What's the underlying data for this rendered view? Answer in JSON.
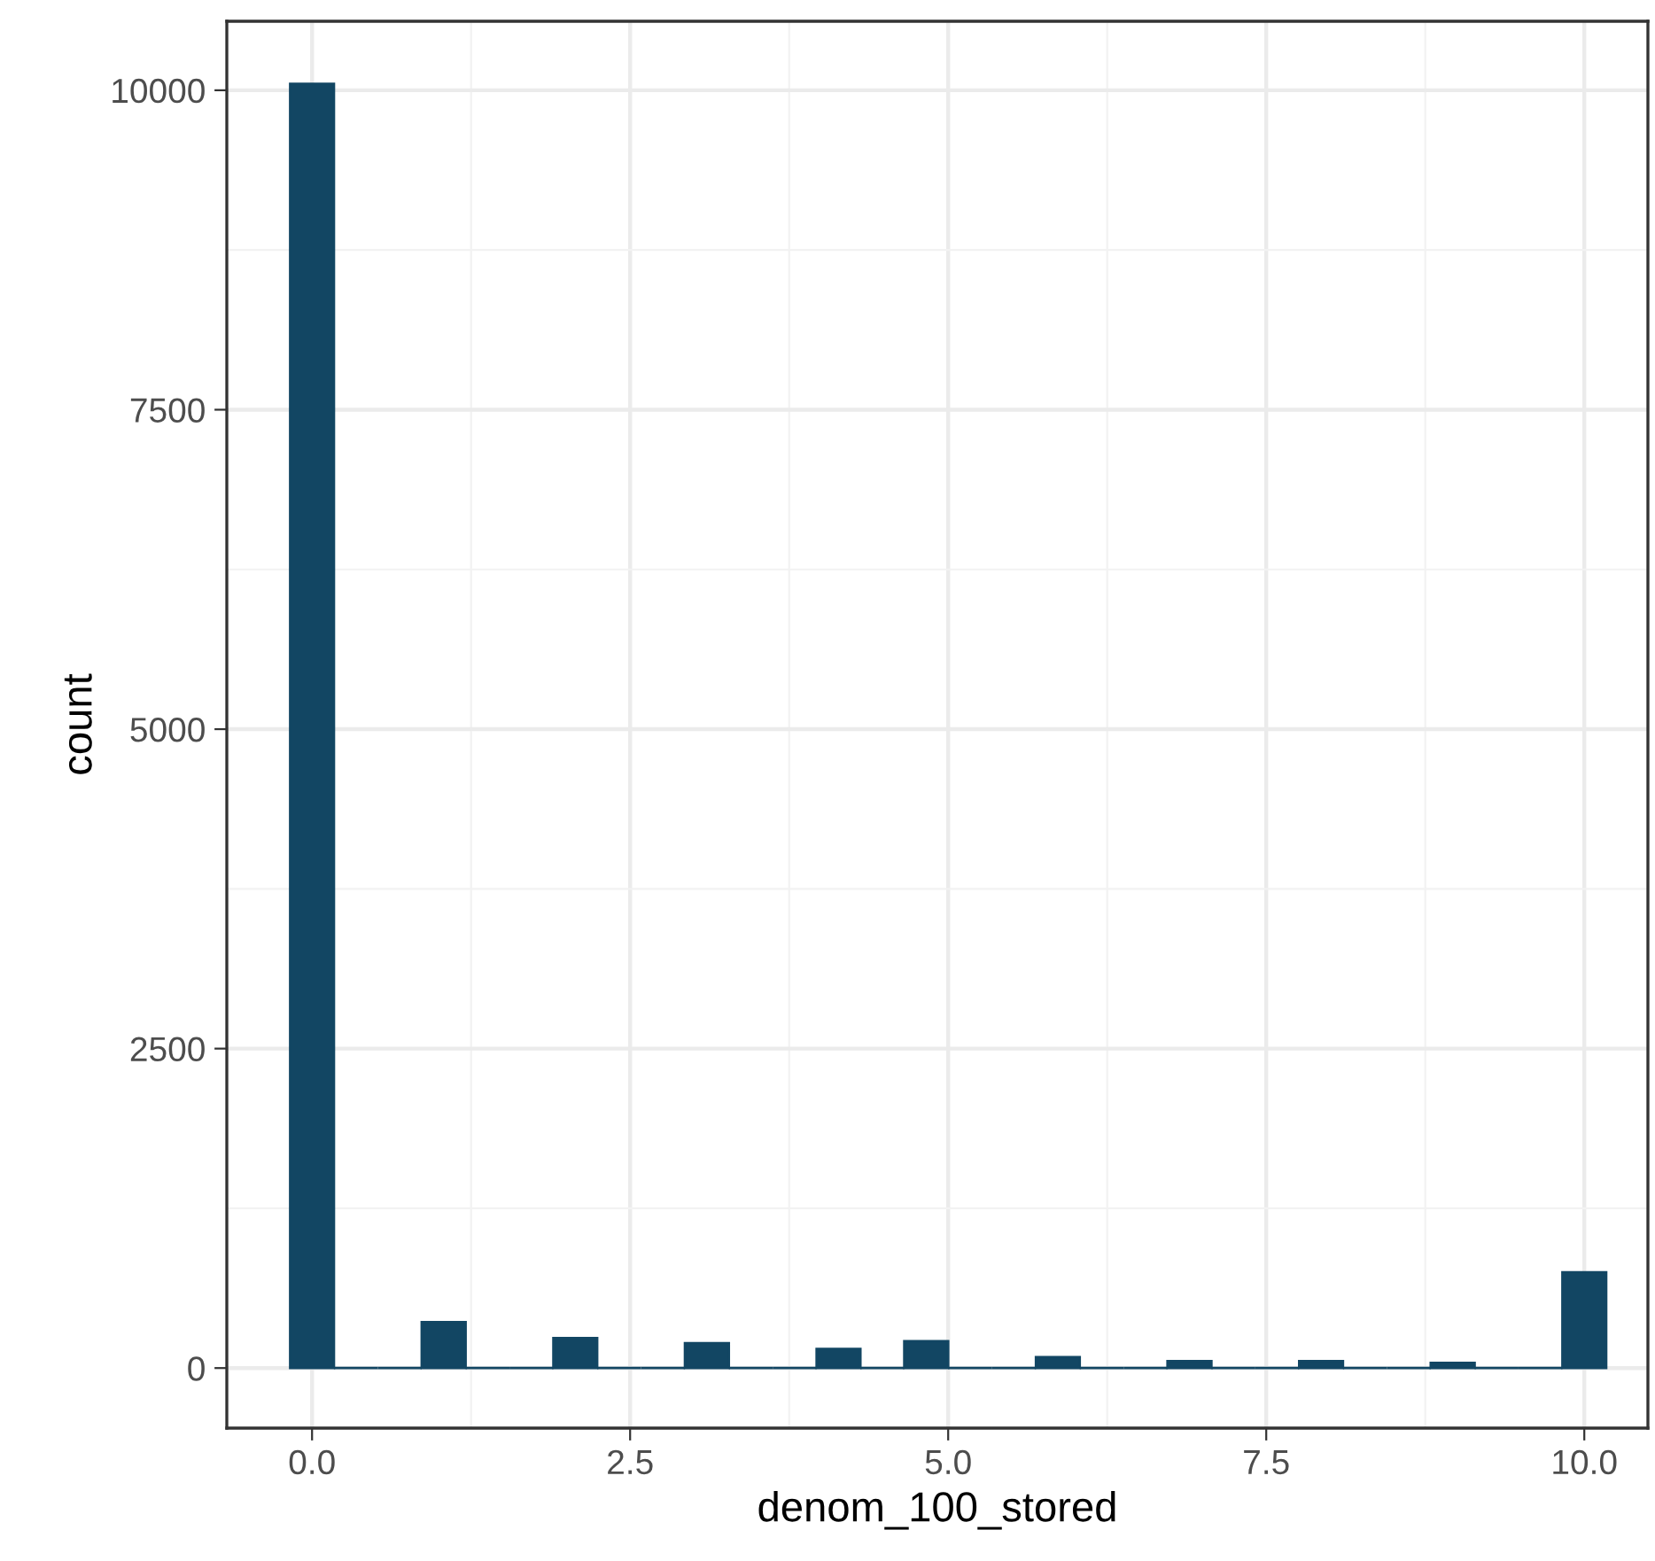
{
  "chart_data": {
    "type": "histogram",
    "xlabel": "denom_100_stored",
    "ylabel": "count",
    "bins": [
      -0.172,
      0.172,
      0.517,
      0.862,
      1.207,
      1.552,
      1.897,
      2.241,
      2.586,
      2.931,
      3.276,
      3.621,
      3.966,
      4.31,
      4.655,
      5.0,
      5.345,
      5.69,
      6.034,
      6.379,
      6.724,
      7.069,
      7.414,
      7.759,
      8.103,
      8.448,
      8.793,
      9.138,
      9.483,
      9.828,
      10.172
    ],
    "values": [
      10050,
      0,
      0,
      360,
      0,
      0,
      235,
      0,
      0,
      195,
      0,
      0,
      150,
      0,
      210,
      0,
      0,
      85,
      0,
      0,
      55,
      0,
      0,
      55,
      0,
      0,
      40,
      0,
      0,
      750
    ],
    "color": "#124663",
    "xlim": [
      -0.67,
      10.5
    ],
    "ylim": [
      -470,
      10540
    ],
    "xticks": [
      {
        "value": 0,
        "label": "0.0"
      },
      2.5,
      {
        "value": 5,
        "label": "5.0"
      },
      7.5,
      {
        "value": 10,
        "label": "10.0"
      }
    ],
    "yticks": [
      0,
      2500,
      5000,
      7500,
      10000
    ],
    "grid": true
  }
}
